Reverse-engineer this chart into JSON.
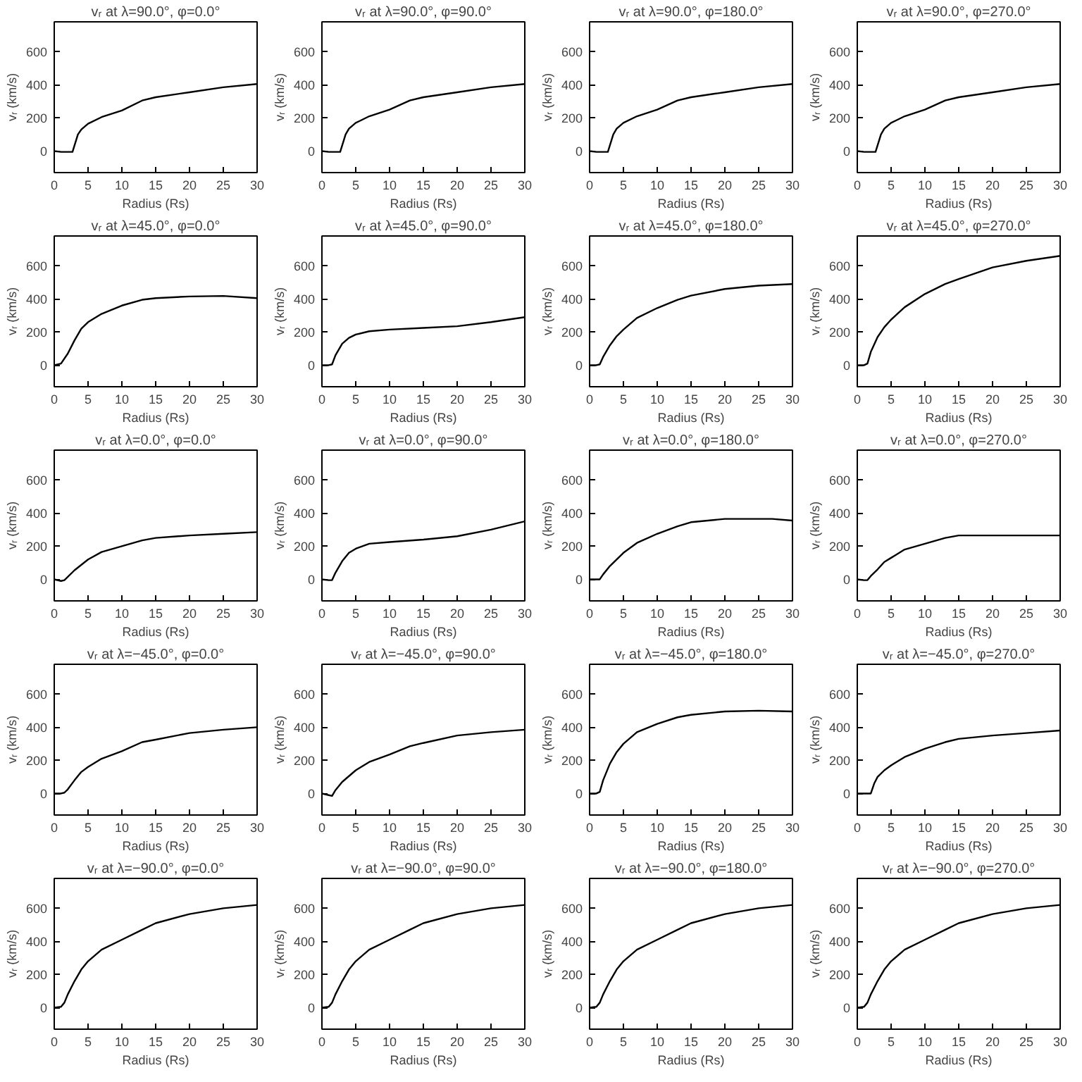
{
  "chart_data": [
    {
      "type": "line",
      "title": "vᵣ at λ=90.0°, φ=0.0°",
      "xlabel": "Radius (Rs)",
      "ylabel": "vᵣ (km/s)",
      "color": "#000000",
      "x": [
        0,
        1,
        2,
        2.7,
        3.5,
        4,
        5,
        7,
        10,
        13,
        15,
        20,
        25,
        30
      ],
      "values": [
        0,
        -5,
        -5,
        -5,
        100,
        130,
        165,
        205,
        245,
        305,
        325,
        355,
        385,
        405
      ],
      "xlim": [
        0,
        30
      ],
      "ylim": [
        -130,
        780
      ],
      "xticks": [
        0,
        5,
        10,
        15,
        20,
        25,
        30
      ],
      "yticks": [
        0,
        200,
        400,
        600
      ]
    },
    {
      "type": "line",
      "title": "vᵣ at λ=90.0°, φ=90.0°",
      "xlabel": "Radius (Rs)",
      "ylabel": "vᵣ (km/s)",
      "color": "#000000",
      "x": [
        0,
        1,
        2,
        2.7,
        3.5,
        4,
        5,
        7,
        10,
        13,
        15,
        20,
        25,
        30
      ],
      "values": [
        0,
        -5,
        -5,
        -5,
        100,
        135,
        170,
        210,
        250,
        305,
        325,
        355,
        385,
        405
      ],
      "xlim": [
        0,
        30
      ],
      "ylim": [
        -130,
        780
      ],
      "xticks": [
        0,
        5,
        10,
        15,
        20,
        25,
        30
      ],
      "yticks": [
        0,
        200,
        400,
        600
      ]
    },
    {
      "type": "line",
      "title": "vᵣ at λ=90.0°, φ=180.0°",
      "xlabel": "Radius (Rs)",
      "ylabel": "vᵣ (km/s)",
      "color": "#000000",
      "x": [
        0,
        1,
        2,
        2.7,
        3.5,
        4,
        5,
        7,
        10,
        13,
        15,
        20,
        25,
        30
      ],
      "values": [
        0,
        -5,
        -5,
        -5,
        100,
        135,
        170,
        210,
        250,
        305,
        325,
        355,
        385,
        405
      ],
      "xlim": [
        0,
        30
      ],
      "ylim": [
        -130,
        780
      ],
      "xticks": [
        0,
        5,
        10,
        15,
        20,
        25,
        30
      ],
      "yticks": [
        0,
        200,
        400,
        600
      ]
    },
    {
      "type": "line",
      "title": "vᵣ at λ=90.0°, φ=270.0°",
      "xlabel": "Radius (Rs)",
      "ylabel": "vᵣ (km/s)",
      "color": "#000000",
      "x": [
        0,
        1,
        2,
        2.7,
        3.5,
        4,
        5,
        7,
        10,
        13,
        15,
        20,
        25,
        30
      ],
      "values": [
        0,
        -5,
        -5,
        -5,
        100,
        135,
        170,
        210,
        250,
        305,
        325,
        355,
        385,
        405
      ],
      "xlim": [
        0,
        30
      ],
      "ylim": [
        -130,
        780
      ],
      "xticks": [
        0,
        5,
        10,
        15,
        20,
        25,
        30
      ],
      "yticks": [
        0,
        200,
        400,
        600
      ]
    },
    {
      "type": "line",
      "title": "vᵣ at λ=45.0°, φ=0.0°",
      "xlabel": "Radius (Rs)",
      "ylabel": "vᵣ (km/s)",
      "color": "#000000",
      "x": [
        0,
        1,
        2,
        3,
        4,
        5,
        7,
        10,
        13,
        15,
        20,
        25,
        30
      ],
      "values": [
        0,
        10,
        70,
        150,
        220,
        260,
        310,
        360,
        395,
        405,
        415,
        418,
        405
      ],
      "xlim": [
        0,
        30
      ],
      "ylim": [
        -130,
        780
      ],
      "xticks": [
        0,
        5,
        10,
        15,
        20,
        25,
        30
      ],
      "yticks": [
        0,
        200,
        400,
        600
      ]
    },
    {
      "type": "line",
      "title": "vᵣ at λ=45.0°, φ=90.0°",
      "xlabel": "Radius (Rs)",
      "ylabel": "vᵣ (km/s)",
      "color": "#000000",
      "x": [
        0,
        1,
        1.5,
        2,
        3,
        4,
        5,
        7,
        10,
        15,
        20,
        25,
        30
      ],
      "values": [
        0,
        0,
        5,
        60,
        130,
        165,
        185,
        205,
        215,
        225,
        235,
        260,
        290
      ],
      "xlim": [
        0,
        30
      ],
      "ylim": [
        -130,
        780
      ],
      "xticks": [
        0,
        5,
        10,
        15,
        20,
        25,
        30
      ],
      "yticks": [
        0,
        200,
        400,
        600
      ]
    },
    {
      "type": "line",
      "title": "vᵣ at λ=45.0°, φ=180.0°",
      "xlabel": "Radius (Rs)",
      "ylabel": "vᵣ (km/s)",
      "color": "#000000",
      "x": [
        0,
        1,
        1.5,
        2,
        3,
        4,
        5,
        7,
        10,
        13,
        15,
        20,
        25,
        30
      ],
      "values": [
        0,
        0,
        5,
        50,
        120,
        175,
        215,
        285,
        345,
        395,
        420,
        460,
        480,
        490
      ],
      "xlim": [
        0,
        30
      ],
      "ylim": [
        -130,
        780
      ],
      "xticks": [
        0,
        5,
        10,
        15,
        20,
        25,
        30
      ],
      "yticks": [
        0,
        200,
        400,
        600
      ]
    },
    {
      "type": "line",
      "title": "vᵣ at λ=45.0°, φ=270.0°",
      "xlabel": "Radius (Rs)",
      "ylabel": "vᵣ (km/s)",
      "color": "#000000",
      "x": [
        0,
        1,
        1.5,
        2,
        3,
        4,
        5,
        7,
        10,
        13,
        15,
        20,
        25,
        30
      ],
      "values": [
        0,
        0,
        10,
        80,
        170,
        230,
        275,
        350,
        430,
        490,
        520,
        590,
        630,
        660
      ],
      "xlim": [
        0,
        30
      ],
      "ylim": [
        -130,
        780
      ],
      "xticks": [
        0,
        5,
        10,
        15,
        20,
        25,
        30
      ],
      "yticks": [
        0,
        200,
        400,
        600
      ]
    },
    {
      "type": "line",
      "title": "vᵣ at λ=0.0°, φ=0.0°",
      "xlabel": "Radius (Rs)",
      "ylabel": "vᵣ (km/s)",
      "color": "#000000",
      "x": [
        0,
        1,
        1.5,
        3,
        5,
        7,
        10,
        13,
        15,
        20,
        25,
        30
      ],
      "values": [
        0,
        -10,
        -5,
        55,
        120,
        165,
        200,
        235,
        250,
        265,
        275,
        285
      ],
      "xlim": [
        0,
        30
      ],
      "ylim": [
        -130,
        780
      ],
      "xticks": [
        0,
        5,
        10,
        15,
        20,
        25,
        30
      ],
      "yticks": [
        0,
        200,
        400,
        600
      ]
    },
    {
      "type": "line",
      "title": "vᵣ at λ=0.0°, φ=90.0°",
      "xlabel": "Radius (Rs)",
      "ylabel": "vᵣ (km/s)",
      "color": "#000000",
      "x": [
        0,
        1,
        1.5,
        2,
        3,
        4,
        5,
        7,
        10,
        15,
        20,
        25,
        30
      ],
      "values": [
        0,
        -5,
        -5,
        40,
        110,
        160,
        185,
        215,
        225,
        240,
        260,
        300,
        350
      ],
      "xlim": [
        0,
        30
      ],
      "ylim": [
        -130,
        780
      ],
      "xticks": [
        0,
        5,
        10,
        15,
        20,
        25,
        30
      ],
      "yticks": [
        0,
        200,
        400,
        600
      ]
    },
    {
      "type": "line",
      "title": "vᵣ at λ=0.0°, φ=180.0°",
      "xlabel": "Radius (Rs)",
      "ylabel": "vᵣ (km/s)",
      "color": "#000000",
      "x": [
        0,
        1.5,
        2,
        3,
        5,
        7,
        10,
        13,
        15,
        20,
        25,
        27,
        30
      ],
      "values": [
        0,
        0,
        30,
        80,
        160,
        220,
        275,
        320,
        345,
        365,
        365,
        365,
        355
      ],
      "xlim": [
        0,
        30
      ],
      "ylim": [
        -130,
        780
      ],
      "xticks": [
        0,
        5,
        10,
        15,
        20,
        25,
        30
      ],
      "yticks": [
        0,
        200,
        400,
        600
      ]
    },
    {
      "type": "line",
      "title": "vᵣ at λ=0.0°, φ=270.0°",
      "xlabel": "Radius (Rs)",
      "ylabel": "vᵣ (km/s)",
      "color": "#000000",
      "x": [
        0,
        1,
        1.5,
        2,
        3,
        4,
        5,
        7,
        10,
        13,
        15,
        20,
        30
      ],
      "values": [
        0,
        -5,
        -5,
        20,
        60,
        105,
        130,
        180,
        215,
        250,
        265,
        265,
        265
      ],
      "xlim": [
        0,
        30
      ],
      "ylim": [
        -130,
        780
      ],
      "xticks": [
        0,
        5,
        10,
        15,
        20,
        25,
        30
      ],
      "yticks": [
        0,
        200,
        400,
        600
      ]
    },
    {
      "type": "line",
      "title": "vᵣ at λ=−45.0°, φ=0.0°",
      "xlabel": "Radius (Rs)",
      "ylabel": "vᵣ (km/s)",
      "color": "#000000",
      "x": [
        0,
        1,
        1.5,
        2,
        3,
        4,
        5,
        7,
        10,
        13,
        15,
        20,
        25,
        30
      ],
      "values": [
        0,
        0,
        5,
        25,
        80,
        130,
        160,
        210,
        255,
        310,
        325,
        365,
        385,
        400
      ],
      "xlim": [
        0,
        30
      ],
      "ylim": [
        -130,
        780
      ],
      "xticks": [
        0,
        5,
        10,
        15,
        20,
        25,
        30
      ],
      "yticks": [
        0,
        200,
        400,
        600
      ]
    },
    {
      "type": "line",
      "title": "vᵣ at λ=−45.0°, φ=90.0°",
      "xlabel": "Radius (Rs)",
      "ylabel": "vᵣ (km/s)",
      "color": "#000000",
      "x": [
        0,
        1,
        1.5,
        2,
        3,
        5,
        7,
        10,
        13,
        15,
        20,
        25,
        30
      ],
      "values": [
        0,
        -10,
        -15,
        20,
        70,
        140,
        190,
        235,
        285,
        305,
        350,
        370,
        385
      ],
      "xlim": [
        0,
        30
      ],
      "ylim": [
        -130,
        780
      ],
      "xticks": [
        0,
        5,
        10,
        15,
        20,
        25,
        30
      ],
      "yticks": [
        0,
        200,
        400,
        600
      ]
    },
    {
      "type": "line",
      "title": "vᵣ at λ=−45.0°, φ=180.0°",
      "xlabel": "Radius (Rs)",
      "ylabel": "vᵣ (km/s)",
      "color": "#000000",
      "x": [
        0,
        1,
        1.5,
        2,
        3,
        4,
        5,
        7,
        10,
        13,
        15,
        20,
        25,
        30
      ],
      "values": [
        0,
        0,
        10,
        80,
        180,
        250,
        300,
        370,
        420,
        460,
        475,
        495,
        500,
        495
      ],
      "xlim": [
        0,
        30
      ],
      "ylim": [
        -130,
        780
      ],
      "xticks": [
        0,
        5,
        10,
        15,
        20,
        25,
        30
      ],
      "yticks": [
        0,
        200,
        400,
        600
      ]
    },
    {
      "type": "line",
      "title": "vᵣ at λ=−45.0°, φ=270.0°",
      "xlabel": "Radius (Rs)",
      "ylabel": "vᵣ (km/s)",
      "color": "#000000",
      "x": [
        0,
        1,
        2,
        2.5,
        3,
        4,
        5,
        7,
        10,
        13,
        15,
        20,
        25,
        30
      ],
      "values": [
        0,
        0,
        0,
        60,
        100,
        140,
        170,
        220,
        270,
        310,
        330,
        350,
        365,
        380
      ],
      "xlim": [
        0,
        30
      ],
      "ylim": [
        -130,
        780
      ],
      "xticks": [
        0,
        5,
        10,
        15,
        20,
        25,
        30
      ],
      "yticks": [
        0,
        200,
        400,
        600
      ]
    },
    {
      "type": "line",
      "title": "vᵣ at λ=−90.0°, φ=0.0°",
      "xlabel": "Radius (Rs)",
      "ylabel": "vᵣ (km/s)",
      "color": "#000000",
      "x": [
        0,
        1,
        1.5,
        2,
        3,
        4,
        5,
        7,
        10,
        13,
        15,
        20,
        25,
        30
      ],
      "values": [
        0,
        5,
        30,
        80,
        160,
        230,
        280,
        350,
        410,
        470,
        510,
        565,
        600,
        620
      ],
      "xlim": [
        0,
        30
      ],
      "ylim": [
        -130,
        780
      ],
      "xticks": [
        0,
        5,
        10,
        15,
        20,
        25,
        30
      ],
      "yticks": [
        0,
        200,
        400,
        600
      ]
    },
    {
      "type": "line",
      "title": "vᵣ at λ=−90.0°, φ=90.0°",
      "xlabel": "Radius (Rs)",
      "ylabel": "vᵣ (km/s)",
      "color": "#000000",
      "x": [
        0,
        1,
        1.5,
        2,
        3,
        4,
        5,
        7,
        10,
        13,
        15,
        20,
        25,
        30
      ],
      "values": [
        0,
        5,
        30,
        80,
        160,
        230,
        280,
        350,
        410,
        470,
        510,
        565,
        600,
        620
      ],
      "xlim": [
        0,
        30
      ],
      "ylim": [
        -130,
        780
      ],
      "xticks": [
        0,
        5,
        10,
        15,
        20,
        25,
        30
      ],
      "yticks": [
        0,
        200,
        400,
        600
      ]
    },
    {
      "type": "line",
      "title": "vᵣ at λ=−90.0°, φ=180.0°",
      "xlabel": "Radius (Rs)",
      "ylabel": "vᵣ (km/s)",
      "color": "#000000",
      "x": [
        0,
        1,
        1.5,
        2,
        3,
        4,
        5,
        7,
        10,
        13,
        15,
        20,
        25,
        30
      ],
      "values": [
        0,
        5,
        30,
        80,
        160,
        230,
        280,
        350,
        410,
        470,
        510,
        565,
        600,
        620
      ],
      "xlim": [
        0,
        30
      ],
      "ylim": [
        -130,
        780
      ],
      "xticks": [
        0,
        5,
        10,
        15,
        20,
        25,
        30
      ],
      "yticks": [
        0,
        200,
        400,
        600
      ]
    },
    {
      "type": "line",
      "title": "vᵣ at λ=−90.0°, φ=270.0°",
      "xlabel": "Radius (Rs)",
      "ylabel": "vᵣ (km/s)",
      "color": "#000000",
      "x": [
        0,
        1,
        1.5,
        2,
        3,
        4,
        5,
        7,
        10,
        13,
        15,
        20,
        25,
        30
      ],
      "values": [
        0,
        5,
        30,
        80,
        160,
        230,
        280,
        350,
        410,
        470,
        510,
        565,
        600,
        620
      ],
      "xlim": [
        0,
        30
      ],
      "ylim": [
        -130,
        780
      ],
      "xticks": [
        0,
        5,
        10,
        15,
        20,
        25,
        30
      ],
      "yticks": [
        0,
        200,
        400,
        600
      ]
    }
  ]
}
